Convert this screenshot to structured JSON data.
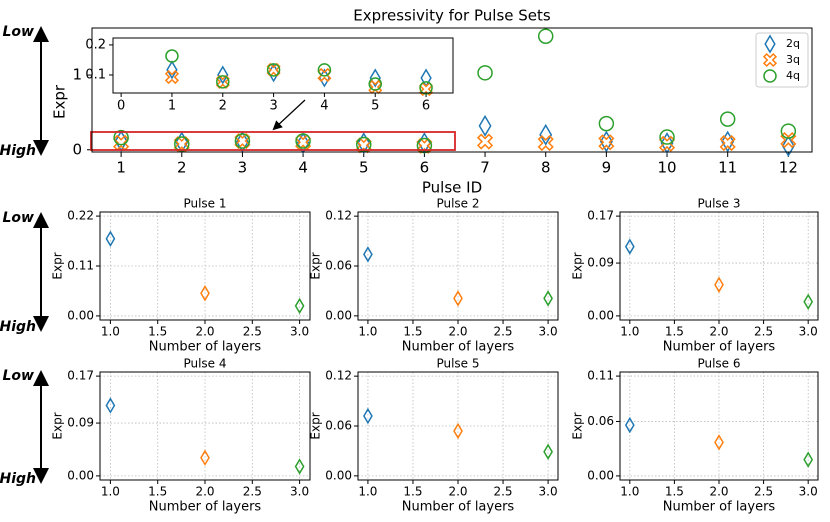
{
  "chart_data": [
    {
      "type": "scatter",
      "title": "Expressivity for Pulse Sets",
      "x_label": "Pulse ID",
      "y_label": "Expr",
      "x": [
        1,
        2,
        3,
        4,
        5,
        6,
        7,
        8,
        9,
        10,
        11,
        12
      ],
      "series": [
        {
          "name": "2q",
          "color": "#1f77b4",
          "marker": "diamond",
          "values": [
            0.117,
            0.1,
            0.107,
            0.09,
            0.09,
            0.09,
            0.32,
            0.2,
            0.11,
            0.09,
            0.11,
            0.05
          ]
        },
        {
          "name": "3q",
          "color": "#ff7f0e",
          "marker": "x",
          "values": [
            0.093,
            0.077,
            0.117,
            0.1,
            0.06,
            0.053,
            0.11,
            0.09,
            0.1,
            0.08,
            0.09,
            0.13
          ]
        },
        {
          "name": "4q",
          "color": "#2ca02c",
          "marker": "circle",
          "values": [
            0.163,
            0.077,
            0.117,
            0.117,
            0.07,
            0.057,
            1.03,
            1.52,
            0.35,
            0.17,
            0.41,
            0.25
          ]
        }
      ],
      "xlim": [
        0.52,
        12.39
      ],
      "ylim": [
        -0.03,
        1.63
      ],
      "xticks": [
        1,
        2,
        3,
        4,
        5,
        6,
        7,
        8,
        9,
        10,
        11,
        12
      ],
      "yticks": [
        0,
        1
      ],
      "legend": "upper right",
      "grid": false,
      "inset": {
        "xlim": [
          -0.16,
          6.53
        ],
        "ylim": [
          0.04,
          0.223
        ],
        "xticks": [
          0,
          1,
          2,
          3,
          4,
          5,
          6
        ],
        "yticks": [
          0.1,
          0.2
        ]
      }
    },
    {
      "type": "scatter",
      "title": "Pulse 1",
      "x_label": "Number of layers",
      "y_label": "Expr",
      "x": [
        1,
        2,
        3
      ],
      "values": [
        0.17,
        0.05,
        0.022
      ],
      "colors": [
        "#1f77b4",
        "#ff7f0e",
        "#2ca02c"
      ],
      "xlim": [
        0.89,
        3.11
      ],
      "ylim": [
        -0.009,
        0.229
      ],
      "xticks": [
        {
          "value": 1,
          "label": "1.0"
        },
        1.5,
        {
          "value": 2,
          "label": "2.0"
        },
        2.5,
        {
          "value": 3,
          "label": "3.0"
        }
      ],
      "yticks": [
        {
          "value": 0,
          "label": "0.00"
        },
        0.11,
        0.22
      ],
      "grid": true
    },
    {
      "type": "scatter",
      "title": "Pulse 2",
      "x_label": "Number of layers",
      "y_label": "Expr",
      "x": [
        1,
        2,
        3
      ],
      "values": [
        0.074,
        0.021,
        0.021
      ],
      "colors": [
        "#1f77b4",
        "#ff7f0e",
        "#2ca02c"
      ],
      "xlim": [
        0.89,
        3.11
      ],
      "ylim": [
        -0.005,
        0.125
      ],
      "xticks": [
        {
          "value": 1,
          "label": "1.0"
        },
        1.5,
        {
          "value": 2,
          "label": "2.0"
        },
        2.5,
        {
          "value": 3,
          "label": "3.0"
        }
      ],
      "yticks": [
        {
          "value": 0,
          "label": "0.00"
        },
        0.06,
        0.12
      ],
      "grid": true
    },
    {
      "type": "scatter",
      "title": "Pulse 3",
      "x_label": "Number of layers",
      "y_label": "Expr",
      "x": [
        1,
        2,
        3
      ],
      "values": [
        0.118,
        0.053,
        0.024
      ],
      "colors": [
        "#1f77b4",
        "#ff7f0e",
        "#2ca02c"
      ],
      "xlim": [
        0.89,
        3.11
      ],
      "ylim": [
        -0.007,
        0.177
      ],
      "xticks": [
        {
          "value": 1,
          "label": "1.0"
        },
        1.5,
        {
          "value": 2,
          "label": "2.0"
        },
        2.5,
        {
          "value": 3,
          "label": "3.0"
        }
      ],
      "yticks": [
        {
          "value": 0,
          "label": "0.00"
        },
        0.09,
        0.17
      ],
      "grid": true
    },
    {
      "type": "scatter",
      "title": "Pulse 4",
      "x_label": "Number of layers",
      "y_label": "Expr",
      "x": [
        1,
        2,
        3
      ],
      "values": [
        0.12,
        0.031,
        0.016
      ],
      "colors": [
        "#1f77b4",
        "#ff7f0e",
        "#2ca02c"
      ],
      "xlim": [
        0.89,
        3.11
      ],
      "ylim": [
        -0.007,
        0.177
      ],
      "xticks": [
        {
          "value": 1,
          "label": "1.0"
        },
        1.5,
        {
          "value": 2,
          "label": "2.0"
        },
        2.5,
        {
          "value": 3,
          "label": "3.0"
        }
      ],
      "yticks": [
        {
          "value": 0,
          "label": "0.00"
        },
        0.09,
        0.17
      ],
      "grid": true
    },
    {
      "type": "scatter",
      "title": "Pulse 5",
      "x_label": "Number of layers",
      "y_label": "Expr",
      "x": [
        1,
        2,
        3
      ],
      "values": [
        0.072,
        0.054,
        0.029
      ],
      "colors": [
        "#1f77b4",
        "#ff7f0e",
        "#2ca02c"
      ],
      "xlim": [
        0.89,
        3.11
      ],
      "ylim": [
        -0.005,
        0.125
      ],
      "xticks": [
        {
          "value": 1,
          "label": "1.0"
        },
        1.5,
        {
          "value": 2,
          "label": "2.0"
        },
        2.5,
        {
          "value": 3,
          "label": "3.0"
        }
      ],
      "yticks": [
        {
          "value": 0,
          "label": "0.00"
        },
        0.06,
        0.12
      ],
      "grid": true
    },
    {
      "type": "scatter",
      "title": "Pulse 6",
      "x_label": "Number of layers",
      "y_label": "Expr",
      "x": [
        1,
        2,
        3
      ],
      "values": [
        0.056,
        0.037,
        0.018
      ],
      "colors": [
        "#1f77b4",
        "#ff7f0e",
        "#2ca02c"
      ],
      "xlim": [
        0.89,
        3.11
      ],
      "ylim": [
        -0.0045,
        0.1145
      ],
      "xticks": [
        {
          "value": 1,
          "label": "1.0"
        },
        1.5,
        {
          "value": 2,
          "label": "2.0"
        },
        2.5,
        {
          "value": 3,
          "label": "3.0"
        }
      ],
      "yticks": [
        {
          "value": 0,
          "label": "0.00"
        },
        0.06,
        0.11
      ],
      "grid": true
    }
  ],
  "scale_arrows": [
    {
      "top": "Low",
      "bottom": "High"
    },
    {
      "top": "Low",
      "bottom": "High"
    },
    {
      "top": "Low",
      "bottom": "High"
    }
  ]
}
